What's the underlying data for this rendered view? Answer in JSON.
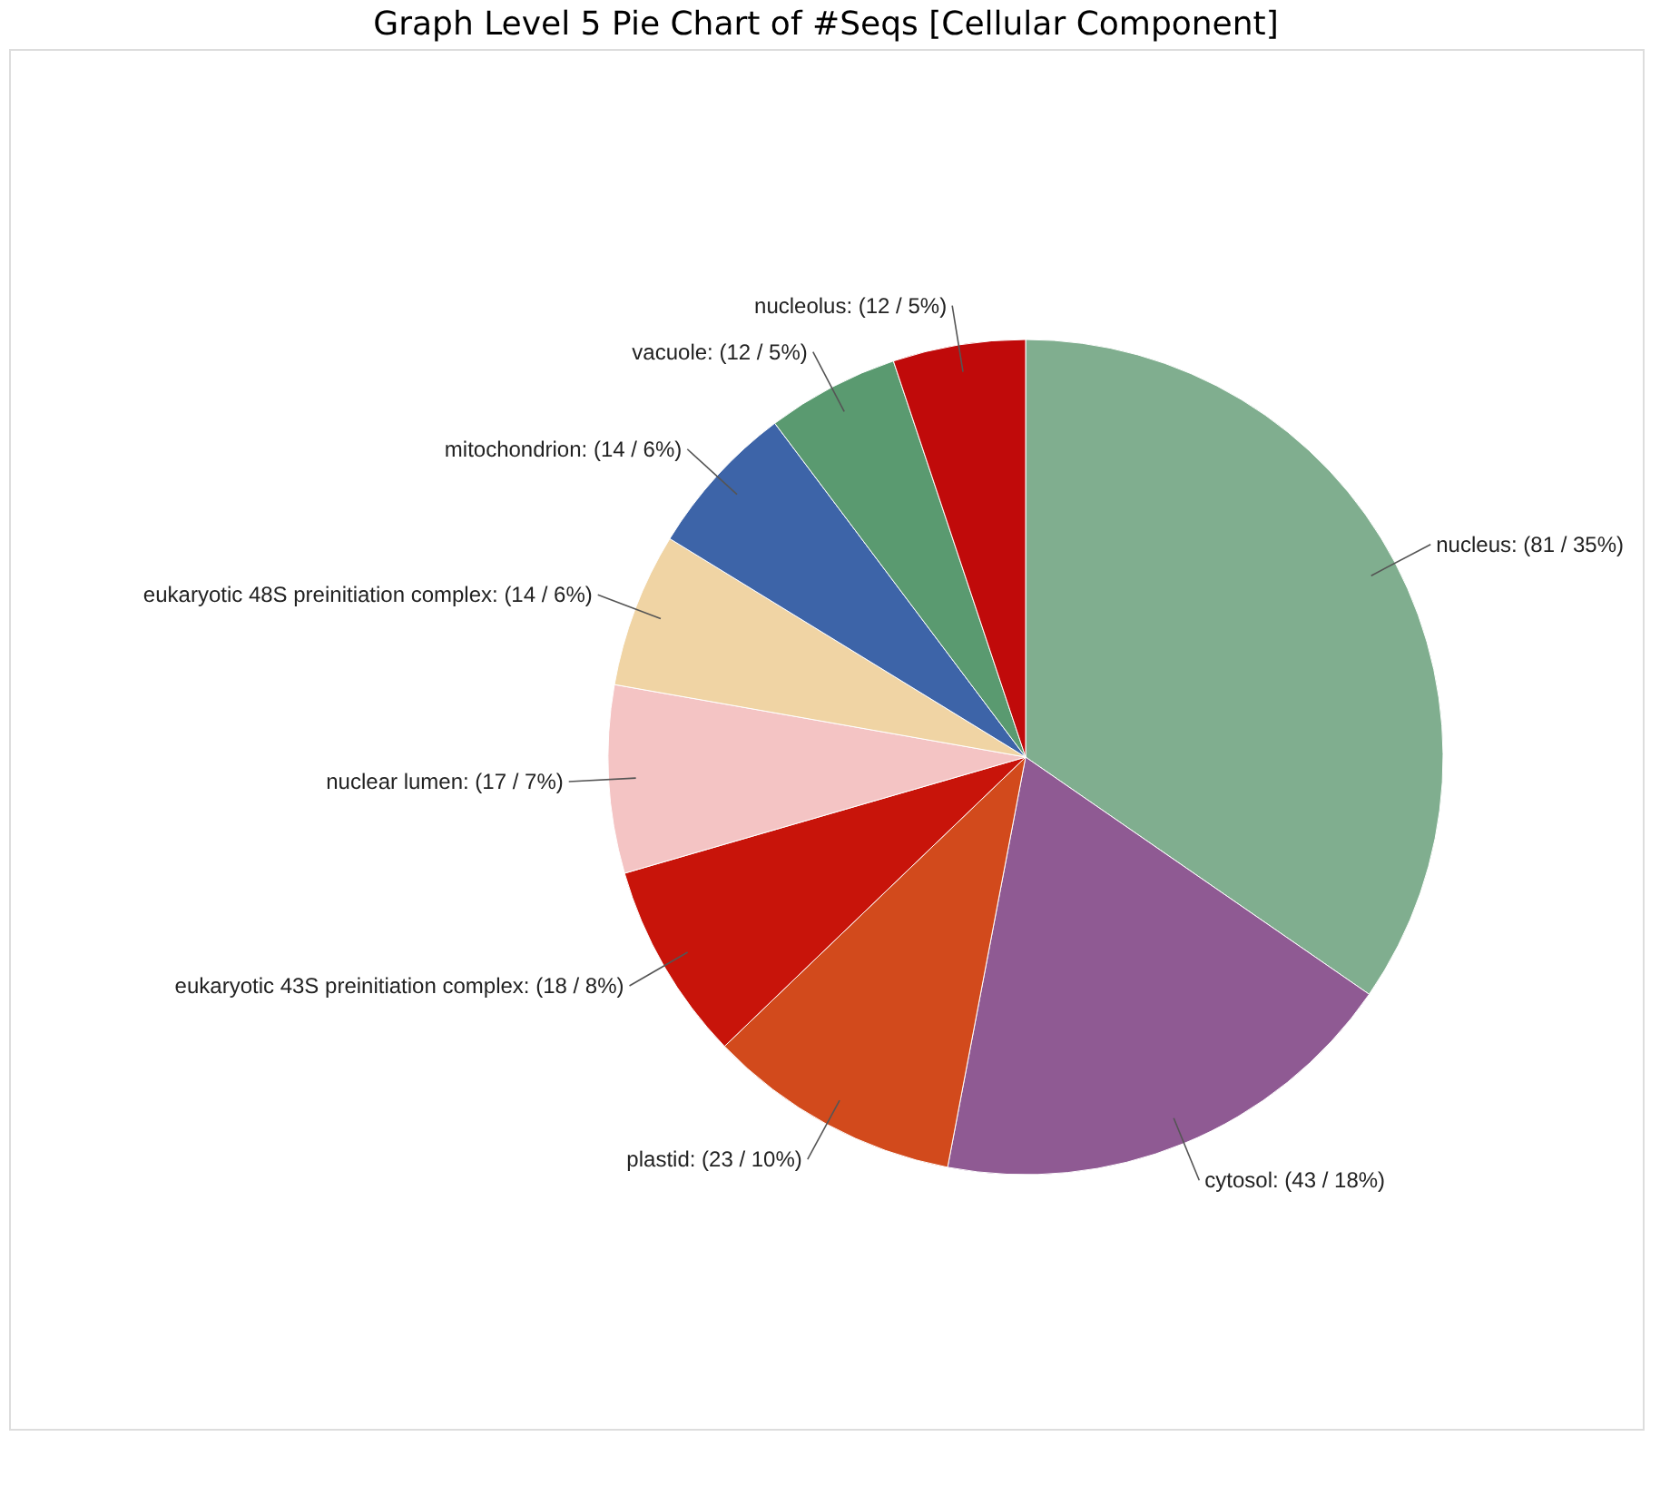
{
  "chart_data": {
    "type": "pie",
    "title": "Graph Level 5 Pie Chart of #Seqs [Cellular Component]",
    "categories": [
      "nucleus",
      "cytosol",
      "plastid",
      "eukaryotic 43S preinitiation complex",
      "nuclear lumen",
      "eukaryotic 48S preinitiation complex",
      "mitochondrion",
      "vacuole",
      "nucleolus"
    ],
    "values": [
      81,
      43,
      23,
      18,
      17,
      14,
      14,
      12,
      12
    ],
    "value_labels": [
      "(81 / 35%)",
      "(43 / 18%)",
      "(23 / 10%)",
      "(18 / 8%)",
      "(17 / 7%)",
      "(14 / 6%)",
      "(14 / 6%)",
      "(12 / 5%)",
      "(12 / 5%)"
    ],
    "colors": [
      "#80ae8f",
      "#8f5a93",
      "#d24a1c",
      "#c8140a",
      "#f4c4c4",
      "#f0d4a4",
      "#3d64a8",
      "#5a9a70",
      "#c00a0a"
    ],
    "legend": false
  }
}
